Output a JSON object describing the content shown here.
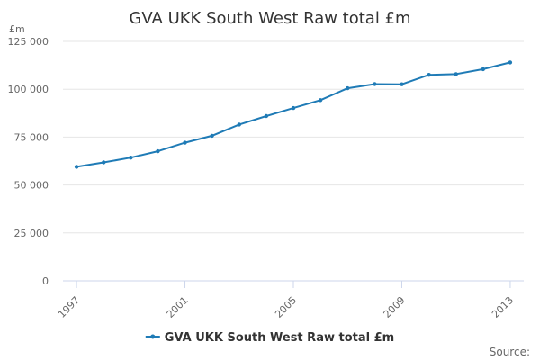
{
  "chart_data": {
    "type": "line",
    "title": "GVA UKK South West Raw total £m",
    "ylabel": "£m",
    "xlabel": "",
    "source_label": "Source:",
    "x": [
      1997,
      1998,
      1999,
      2000,
      2001,
      2002,
      2003,
      2004,
      2005,
      2006,
      2007,
      2008,
      2009,
      2010,
      2011,
      2012,
      2013
    ],
    "x_tick_labels": [
      "1997",
      "2001",
      "2005",
      "2009",
      "2013"
    ],
    "x_tick_values": [
      1997,
      2001,
      2005,
      2009,
      2013
    ],
    "xlim": [
      1996.5,
      2013.5
    ],
    "y_ticks": [
      0,
      25000,
      50000,
      75000,
      100000,
      125000
    ],
    "y_tick_labels": [
      "0",
      "25 000",
      "50 000",
      "75 000",
      "100 000",
      "125 000"
    ],
    "ylim": [
      0,
      125000
    ],
    "grid": true,
    "legend_position": "bottom-center",
    "series": [
      {
        "name": "GVA UKK South West Raw total £m",
        "color": "#1f7bb6",
        "values": [
          59500,
          61800,
          64300,
          67600,
          72100,
          75700,
          81600,
          86000,
          90200,
          94300,
          100500,
          102700,
          102600,
          107500,
          107900,
          110500,
          114000
        ]
      }
    ]
  }
}
